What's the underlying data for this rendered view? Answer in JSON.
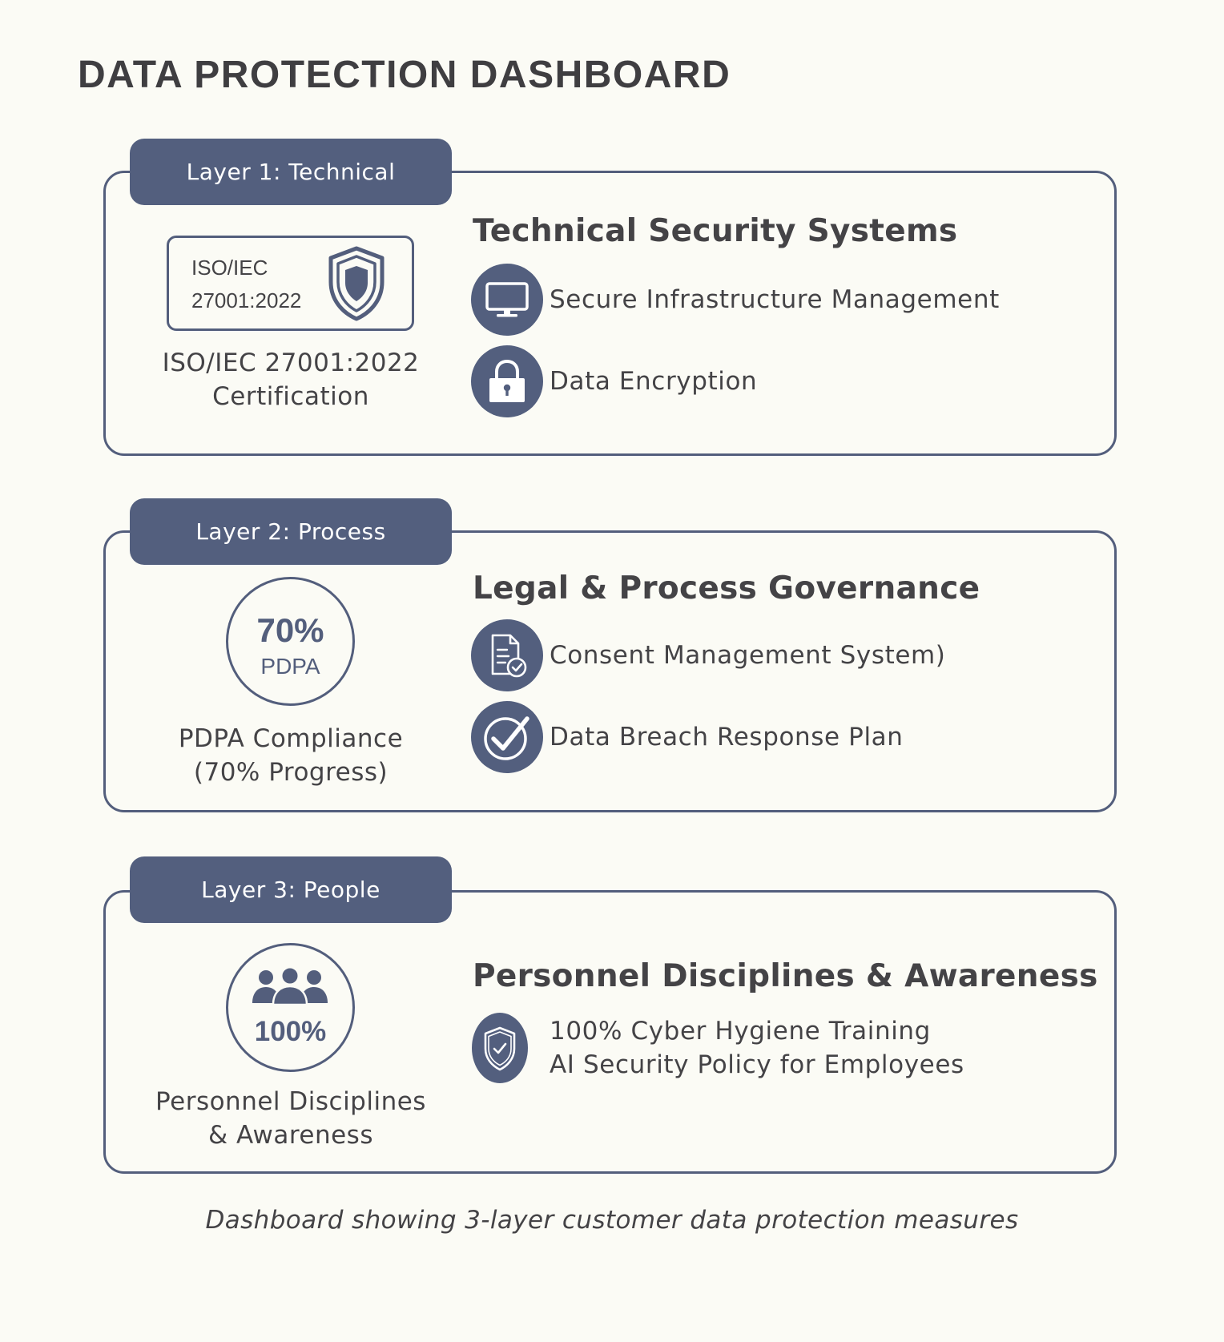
{
  "page": {
    "title": "DATA PROTECTION DASHBOARD",
    "caption": "Dashboard showing 3-layer customer data protection measures"
  },
  "colors": {
    "accent": "#535f7e",
    "background": "#fbfbf5",
    "text": "#444346"
  },
  "layers": [
    {
      "tab": "Layer 1: Technical",
      "heading": "Technical Security Systems",
      "badge": {
        "line1": "ISO/IEC",
        "line2": "27001:2022",
        "icon": "shield-icon"
      },
      "caption_line1": "ISO/IEC 27001:2022",
      "caption_line2": "Certification",
      "features": [
        {
          "icon": "monitor-icon",
          "label": "Secure Infrastructure Management"
        },
        {
          "icon": "lock-icon",
          "label": "Data Encryption"
        }
      ]
    },
    {
      "tab": "Layer 2: Process",
      "heading": "Legal & Process Governance",
      "progress": {
        "value_text": "70%",
        "label": "PDPA",
        "value": 0.7
      },
      "caption_line1": "PDPA Compliance",
      "caption_line2": "(70% Progress)",
      "features": [
        {
          "icon": "document-check-icon",
          "label": "Consent Management System)"
        },
        {
          "icon": "checkmark-circle-icon",
          "label": "Data Breach Response Plan"
        }
      ]
    },
    {
      "tab": "Layer 3: People",
      "heading": "Personnel Disciplines & Awareness",
      "progress": {
        "value_text": "100%",
        "icon": "people-group-icon",
        "value": 1.0
      },
      "caption_line1": "Personnel Disciplines",
      "caption_line2": "& Awareness",
      "features": [
        {
          "icon": "shield-check-icon",
          "line1": "100% Cyber Hygiene Training",
          "line2": "AI Security Policy for Employees"
        }
      ]
    }
  ]
}
